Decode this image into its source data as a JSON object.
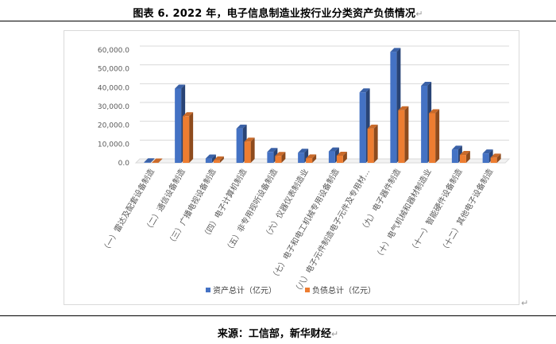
{
  "caption": "图表 6. 2022 年，电子信息制造业按行业分类资产负债情况",
  "source": "来源：工信部，新华财经",
  "paragraph_mark": "↵",
  "colors": {
    "assets": "#4472C4",
    "liabilities": "#ED7D31",
    "grid": "#d9d9d9",
    "axis_text": "#595959"
  },
  "chart_data": {
    "type": "bar",
    "categories": [
      "（一）雷达及配套设备制造",
      "（二）通信设备制造",
      "（三）广播电视设备制造",
      "（四）电子计算机制造",
      "（五）非专用视听设备制造",
      "（六）仪器仪表制造业",
      "（七）电子和电工机械专用设备制造",
      "（八）电子元件制造电子元件及专用材…",
      "（九）电子器件制造",
      "（十）电气机械和器材制造业",
      "（十一）智能硬件设备制造",
      "（十二）其他电子设备制造"
    ],
    "series": [
      {
        "name": "资产总计（亿元）",
        "values": [
          300,
          39500,
          2300,
          18200,
          5800,
          5400,
          6100,
          37500,
          59000,
          41000,
          7000,
          5000
        ]
      },
      {
        "name": "负债总计（亿元）",
        "values": [
          200,
          24800,
          1300,
          11300,
          3700,
          2400,
          3800,
          18200,
          28000,
          26400,
          4200,
          2800
        ]
      }
    ],
    "ylim": [
      0,
      60000
    ],
    "yticks": [
      "0.0",
      "10,000.0",
      "20,000.0",
      "30,000.0",
      "40,000.0",
      "50,000.0",
      "60,000.0"
    ],
    "grid": true,
    "legend_position": "bottom",
    "bar_style": "3d"
  }
}
